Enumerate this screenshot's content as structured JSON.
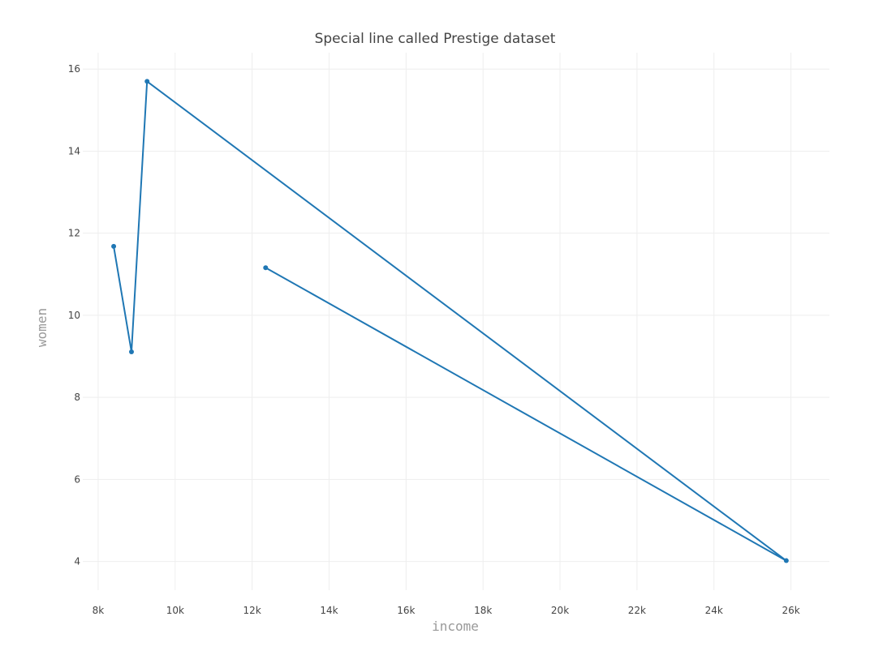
{
  "chart_data": {
    "type": "line",
    "title": "Special line called Prestige dataset",
    "xlabel": "income",
    "ylabel": "women",
    "xlim": [
      7600,
      27000
    ],
    "ylim": [
      3.3,
      16.4
    ],
    "x_ticks": [
      8000,
      10000,
      12000,
      14000,
      16000,
      18000,
      20000,
      22000,
      24000,
      26000
    ],
    "x_tick_labels": [
      "8k",
      "10k",
      "12k",
      "14k",
      "16k",
      "18k",
      "20k",
      "22k",
      "24k",
      "26k"
    ],
    "y_ticks": [
      4,
      6,
      8,
      10,
      12,
      14,
      16
    ],
    "y_tick_labels": [
      "4",
      "6",
      "8",
      "10",
      "12",
      "14",
      "16"
    ],
    "grid": true,
    "series": [
      {
        "color": "#1f77b4",
        "x": [
          12351,
          25879,
          9271,
          8865,
          8403
        ],
        "y": [
          11.16,
          4.02,
          15.7,
          9.11,
          11.68
        ]
      }
    ]
  }
}
